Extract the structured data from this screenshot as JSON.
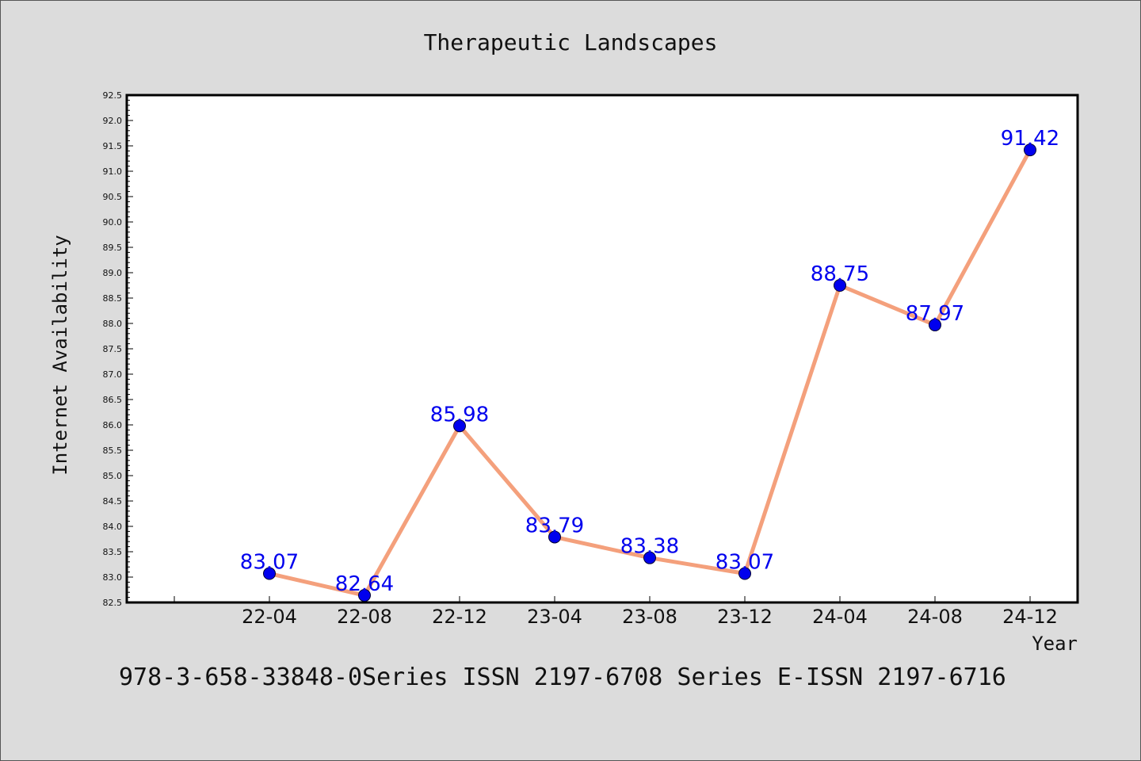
{
  "chart_data": {
    "type": "line",
    "title": "Therapeutic Landscapes",
    "xlabel": "Year",
    "ylabel": "Internet Availability",
    "categories": [
      "22-04",
      "22-08",
      "22-12",
      "23-04",
      "23-08",
      "23-12",
      "24-04",
      "24-08",
      "24-12"
    ],
    "series": [
      {
        "values": [
          83.07,
          82.64,
          85.98,
          83.79,
          83.38,
          83.07,
          88.75,
          87.97,
          91.42
        ],
        "data_labels": [
          "83.07",
          "82.64",
          "85.98",
          "83.79",
          "83.38",
          "83.07",
          "88.75",
          "87.97",
          "91.42"
        ]
      }
    ],
    "ylim": [
      82.5,
      92.5
    ],
    "yticks": [
      "82.5",
      "83.0",
      "83.5",
      "84.0",
      "84.5",
      "85.0",
      "85.5",
      "86.0",
      "86.5",
      "87.0",
      "87.5",
      "88.0",
      "88.5",
      "89.0",
      "89.5",
      "90.0",
      "90.5",
      "91.0",
      "91.5",
      "92.0",
      "92.5"
    ],
    "grid": false,
    "line_color": "#f4a07c",
    "marker_color": "#0000ee",
    "label_color": "#0000ee"
  },
  "footer": {
    "text": "978-3-658-33848-0Series ISSN 2197-6708 Series E-ISSN 2197-6716"
  }
}
